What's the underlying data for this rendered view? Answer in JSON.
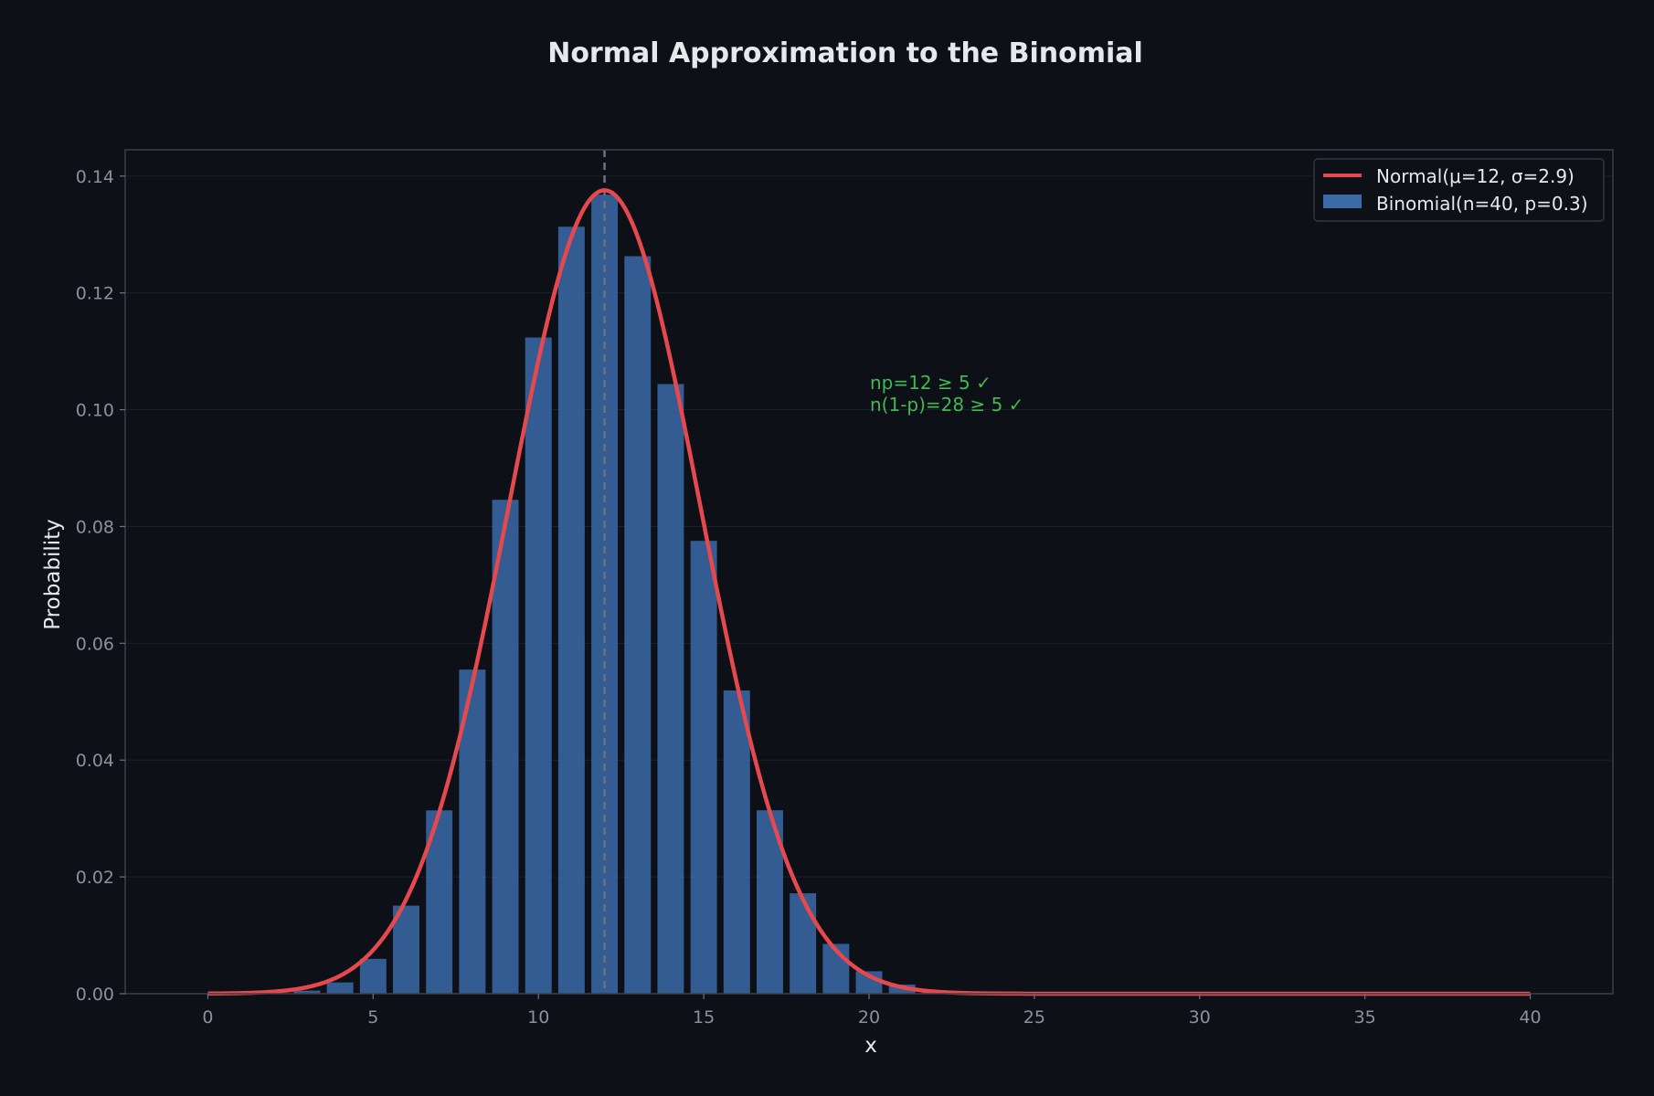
{
  "chart_data": {
    "type": "bar",
    "title": "Normal Approximation to the Binomial",
    "xlabel": "x",
    "ylabel": "Probability",
    "xlim": [
      -2.5,
      42.5
    ],
    "ylim": [
      0,
      0.1445
    ],
    "x_ticks": [
      0,
      5,
      10,
      15,
      20,
      25,
      30,
      35,
      40
    ],
    "y_ticks": [
      0.0,
      0.02,
      0.04,
      0.06,
      0.08,
      0.1,
      0.12,
      0.14
    ],
    "y_tick_labels": [
      "0.00",
      "0.02",
      "0.04",
      "0.06",
      "0.08",
      "0.10",
      "0.12",
      "0.14"
    ],
    "grid": true,
    "legend_position": "top-right",
    "mean_line": {
      "x": 12,
      "style": "dashed",
      "color": "#6b7280"
    },
    "series": [
      {
        "name": "Binomial(n=40, p=0.3)",
        "kind": "bar",
        "color": "#3a6aa8",
        "x": [
          0,
          1,
          2,
          3,
          4,
          5,
          6,
          7,
          8,
          9,
          10,
          11,
          12,
          13,
          14,
          15,
          16,
          17,
          18,
          19,
          20,
          21,
          22,
          23,
          24,
          25,
          26,
          27,
          28,
          29,
          30,
          31,
          32,
          33,
          34,
          35,
          36,
          37,
          38,
          39,
          40
        ],
        "values": [
          6e-07,
          1e-05,
          9e-05,
          0.00053,
          0.00193,
          0.00597,
          0.01508,
          0.03139,
          0.05549,
          0.08457,
          0.11236,
          0.13133,
          0.13681,
          0.12628,
          0.10439,
          0.07754,
          0.05193,
          0.03141,
          0.0172,
          0.00853,
          0.00384,
          0.00157,
          0.00058,
          0.0002,
          6e-05,
          2e-05,
          4e-06,
          1e-06,
          0,
          0,
          0,
          0,
          0,
          0,
          0,
          0,
          0,
          0,
          0,
          0,
          0
        ]
      },
      {
        "name": "Normal(μ=12, σ=2.9)",
        "kind": "line",
        "color": "#e5484d",
        "mu": 12,
        "sigma": 2.9,
        "x_range": [
          0,
          40
        ]
      }
    ],
    "annotations": [
      "np=12 ≥ 5 ✓",
      "n(1-p)=28 ≥ 5 ✓"
    ]
  }
}
